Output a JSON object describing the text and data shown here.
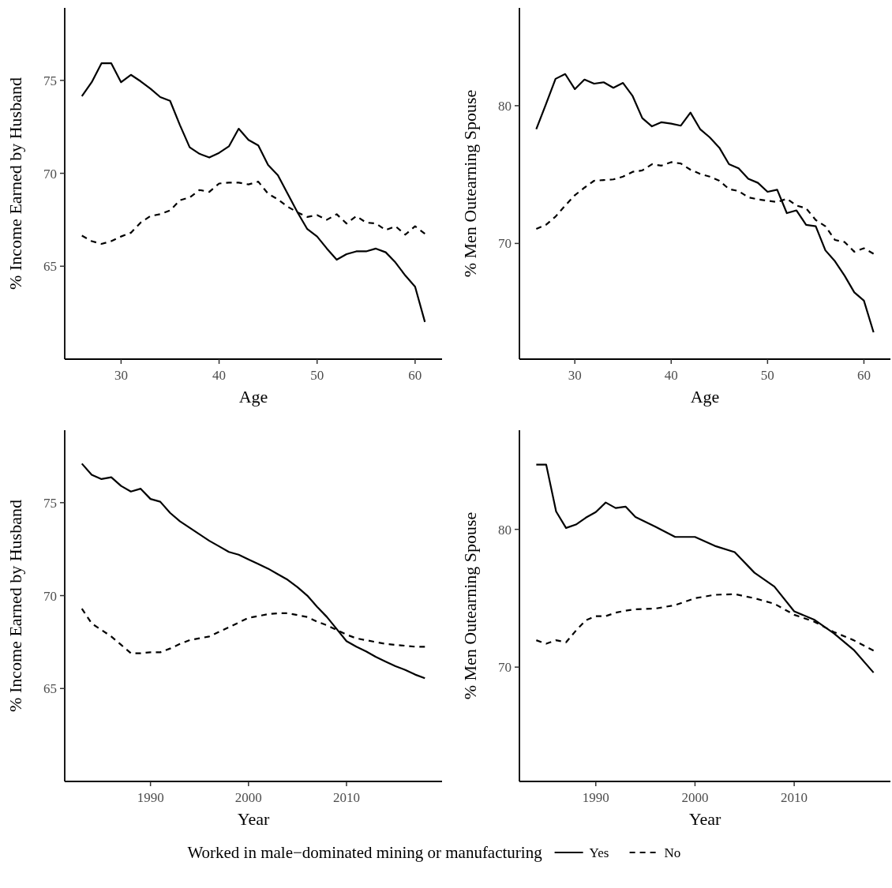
{
  "chart_data": [
    {
      "type": "line",
      "xlabel": "Age",
      "ylabel": "% Income Earned by Husband",
      "xlim": [
        24.25,
        62.75
      ],
      "xticks": [
        30,
        40,
        50,
        60
      ],
      "ylim": [
        60,
        78.9
      ],
      "yticks": [
        65,
        70,
        75
      ],
      "grid": false,
      "legend": "bottom",
      "legend_title": "Worked in male−dominated mining or manufacturing",
      "x": [
        26,
        27,
        28,
        29,
        30,
        31,
        32,
        33,
        34,
        35,
        36,
        37,
        38,
        39,
        40,
        41,
        42,
        43,
        44,
        45,
        46,
        47,
        48,
        49,
        50,
        51,
        52,
        53,
        54,
        55,
        56,
        57,
        58,
        59,
        60,
        61
      ],
      "series": [
        {
          "name": "Yes",
          "color": "#000000",
          "line_style": "solid",
          "values": [
            74.15,
            74.9,
            75.92,
            75.92,
            74.9,
            75.3,
            74.95,
            74.55,
            74.1,
            73.9,
            72.6,
            71.4,
            71.05,
            70.85,
            71.1,
            71.45,
            72.4,
            71.8,
            71.5,
            70.45,
            69.9,
            68.9,
            67.9,
            67.0,
            66.6,
            65.95,
            65.35,
            65.65,
            65.8,
            65.8,
            65.95,
            65.75,
            65.2,
            64.5,
            63.9,
            62.0
          ]
        },
        {
          "name": "No",
          "color": "#000000",
          "line_style": "dashed",
          "values": [
            66.65,
            66.35,
            66.2,
            66.35,
            66.6,
            66.8,
            67.35,
            67.7,
            67.8,
            68.0,
            68.55,
            68.7,
            69.1,
            69.0,
            69.45,
            69.5,
            69.5,
            69.4,
            69.55,
            68.9,
            68.6,
            68.2,
            67.9,
            67.65,
            67.75,
            67.5,
            67.8,
            67.3,
            67.7,
            67.35,
            67.3,
            66.95,
            67.15,
            66.7,
            67.15,
            66.75
          ]
        }
      ]
    },
    {
      "type": "line",
      "xlabel": "Age",
      "ylabel": "% Men Outearning Spouse",
      "xlim": [
        24.25,
        62.75
      ],
      "xticks": [
        30,
        40,
        50,
        60
      ],
      "ylim": [
        61.6,
        87.1
      ],
      "yticks": [
        70,
        80
      ],
      "grid": false,
      "x": [
        26,
        27,
        28,
        29,
        30,
        31,
        32,
        33,
        34,
        35,
        36,
        37,
        38,
        39,
        40,
        41,
        42,
        43,
        44,
        45,
        46,
        47,
        48,
        49,
        50,
        51,
        52,
        53,
        54,
        55,
        56,
        57,
        58,
        59,
        60,
        61
      ],
      "series": [
        {
          "color": "#000000",
          "line_style": "solid",
          "values": [
            78.3,
            80.1,
            81.95,
            82.3,
            81.2,
            81.9,
            81.6,
            81.7,
            81.3,
            81.65,
            80.7,
            79.1,
            78.5,
            78.8,
            78.7,
            78.55,
            79.5,
            78.3,
            77.7,
            76.95,
            75.75,
            75.45,
            74.7,
            74.4,
            73.75,
            73.9,
            72.2,
            72.4,
            71.35,
            71.25,
            69.5,
            68.7,
            67.65,
            66.45,
            65.85,
            63.55
          ]
        },
        {
          "color": "#000000",
          "line_style": "dashed",
          "values": [
            71.05,
            71.35,
            71.95,
            72.75,
            73.5,
            74.05,
            74.55,
            74.6,
            74.65,
            74.85,
            75.2,
            75.3,
            75.75,
            75.65,
            75.9,
            75.8,
            75.35,
            75.05,
            74.85,
            74.55,
            73.95,
            73.8,
            73.35,
            73.2,
            73.1,
            73.0,
            73.25,
            72.75,
            72.55,
            71.7,
            71.25,
            70.25,
            70.1,
            69.4,
            69.65,
            69.25
          ]
        }
      ]
    },
    {
      "type": "line",
      "xlabel": "Year",
      "ylabel": "% Income Earned by Husband",
      "xlim": [
        1981.25,
        2019.75
      ],
      "xticks": [
        1990,
        2000,
        2010
      ],
      "ylim": [
        60,
        78.9
      ],
      "yticks": [
        65,
        70,
        75
      ],
      "grid": false,
      "x": [
        1983,
        1984,
        1985,
        1986,
        1987,
        1988,
        1989,
        1990,
        1991,
        1992,
        1993,
        1994,
        1995,
        1996,
        1997,
        1998,
        1999,
        2000,
        2001,
        2002,
        2003,
        2004,
        2005,
        2006,
        2007,
        2008,
        2009,
        2010,
        2011,
        2012,
        2013,
        2014,
        2015,
        2016,
        2017,
        2018
      ],
      "series": [
        {
          "color": "#000000",
          "line_style": "solid",
          "values": [
            77.1,
            76.5,
            76.27,
            76.37,
            75.9,
            75.6,
            75.75,
            75.2,
            75.05,
            74.45,
            74.0,
            73.65,
            73.3,
            72.95,
            72.65,
            72.35,
            72.2,
            71.95,
            71.7,
            71.45,
            71.15,
            70.85,
            70.45,
            70.0,
            69.4,
            68.85,
            68.2,
            67.55,
            67.25,
            67.0,
            66.7,
            66.45,
            66.2,
            66.0,
            65.75,
            65.55
          ]
        },
        {
          "color": "#000000",
          "line_style": "dashed",
          "values": [
            69.3,
            68.5,
            68.15,
            67.8,
            67.35,
            66.9,
            66.9,
            66.95,
            66.95,
            67.15,
            67.4,
            67.6,
            67.7,
            67.8,
            68.05,
            68.3,
            68.55,
            68.8,
            68.9,
            69.0,
            69.05,
            69.05,
            68.95,
            68.85,
            68.6,
            68.4,
            68.15,
            67.9,
            67.7,
            67.6,
            67.5,
            67.4,
            67.35,
            67.3,
            67.25,
            67.25
          ]
        }
      ]
    },
    {
      "type": "line",
      "xlabel": "Year",
      "ylabel": "% Men Outearning Spouse",
      "xlim": [
        1982.3,
        2019.7
      ],
      "xticks": [
        1990,
        2000,
        2010
      ],
      "ylim": [
        61.7,
        87.2
      ],
      "yticks": [
        70,
        80
      ],
      "grid": false,
      "x": [
        1984,
        1985,
        1986,
        1987,
        1988,
        1989,
        1990,
        1991,
        1992,
        1993,
        1994,
        1996,
        1998,
        2000,
        2002,
        2004,
        2006,
        2008,
        2010,
        2012,
        2014,
        2016,
        2018
      ],
      "series": [
        {
          "color": "#000000",
          "line_style": "solid",
          "values": [
            84.7,
            84.7,
            81.3,
            80.1,
            80.35,
            80.85,
            81.25,
            81.95,
            81.55,
            81.65,
            80.9,
            80.2,
            79.45,
            79.45,
            78.8,
            78.35,
            76.85,
            75.85,
            74.05,
            73.45,
            72.45,
            71.25,
            69.6
          ]
        },
        {
          "color": "#000000",
          "line_style": "dashed",
          "values": [
            71.95,
            71.7,
            71.95,
            71.8,
            72.65,
            73.4,
            73.7,
            73.7,
            73.95,
            74.1,
            74.2,
            74.25,
            74.5,
            75.0,
            75.25,
            75.3,
            75.0,
            74.6,
            73.8,
            73.3,
            72.55,
            71.95,
            71.2
          ]
        }
      ]
    }
  ]
}
